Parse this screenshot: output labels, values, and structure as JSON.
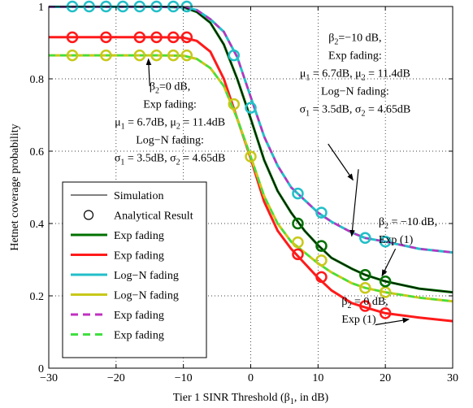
{
  "chart_data": {
    "type": "line",
    "xlabel": "Tier 1 SINR Threshold (β",
    "xlabel_sub": "1",
    "xlabel_tail": ", in dB)",
    "ylabel": "Hetnet coverage probability",
    "xlim": [
      -30,
      30
    ],
    "ylim": [
      0,
      1
    ],
    "xticks": [
      -30,
      -20,
      -10,
      0,
      10,
      20,
      30
    ],
    "yticks": [
      0,
      0.2,
      0.4,
      0.6,
      0.8,
      1
    ],
    "grid": true,
    "legend_position": "lower-left",
    "legend": [
      {
        "label": "Simulation",
        "style": "line",
        "color": "#000000"
      },
      {
        "label": "Analytical Result",
        "style": "marker",
        "color": "#000000"
      },
      {
        "label": "Exp fading",
        "style": "line",
        "color": "#007000"
      },
      {
        "label": "Exp fading",
        "style": "line",
        "color": "#ff1a1a"
      },
      {
        "label": "Log−N fading",
        "style": "line",
        "color": "#22bfc8"
      },
      {
        "label": "Log−N fading",
        "style": "line",
        "color": "#c8c81a"
      },
      {
        "label": "Exp fading",
        "style": "dash",
        "color": "#c030c0"
      },
      {
        "label": "Exp fading",
        "style": "dash",
        "color": "#40e040"
      }
    ],
    "series": [
      {
        "color": "#007000",
        "dash": false,
        "x": [
          -30,
          -20,
          -14,
          -10,
          -8,
          -6,
          -4,
          -2,
          0,
          2,
          4,
          6,
          8,
          10,
          12,
          15,
          17,
          20,
          25,
          30
        ],
        "y": [
          0.999,
          0.999,
          0.999,
          0.998,
          0.985,
          0.955,
          0.895,
          0.8,
          0.69,
          0.575,
          0.49,
          0.43,
          0.38,
          0.34,
          0.305,
          0.275,
          0.258,
          0.24,
          0.22,
          0.21
        ]
      },
      {
        "color": "#22bfc8",
        "dash": false,
        "x": [
          -30,
          -20,
          -14,
          -10,
          -8,
          -6,
          -4,
          -2,
          0,
          2,
          4,
          6,
          8,
          10,
          12,
          15,
          17,
          20,
          25,
          30
        ],
        "y": [
          0.999,
          0.999,
          0.999,
          0.998,
          0.99,
          0.965,
          0.93,
          0.86,
          0.75,
          0.64,
          0.56,
          0.5,
          0.465,
          0.43,
          0.405,
          0.375,
          0.36,
          0.35,
          0.33,
          0.32
        ]
      },
      {
        "color": "#c030c0",
        "dash": true,
        "x": [
          -30,
          -20,
          -14,
          -10,
          -8,
          -6,
          -4,
          -2,
          0,
          2,
          4,
          6,
          8,
          10,
          12,
          15,
          17,
          20,
          25,
          30
        ],
        "y": [
          0.999,
          0.999,
          0.999,
          0.998,
          0.99,
          0.965,
          0.93,
          0.86,
          0.75,
          0.64,
          0.56,
          0.5,
          0.465,
          0.43,
          0.405,
          0.375,
          0.36,
          0.35,
          0.33,
          0.32
        ]
      },
      {
        "color": "#ff1a1a",
        "dash": false,
        "x": [
          -30,
          -20,
          -14,
          -10,
          -8,
          -6,
          -4,
          -2,
          0,
          2,
          4,
          6,
          8,
          10,
          12,
          15,
          17,
          20,
          25,
          30
        ],
        "y": [
          0.915,
          0.915,
          0.915,
          0.914,
          0.905,
          0.875,
          0.8,
          0.69,
          0.58,
          0.46,
          0.38,
          0.33,
          0.29,
          0.25,
          0.215,
          0.18,
          0.168,
          0.152,
          0.14,
          0.13
        ]
      },
      {
        "color": "#c8c81a",
        "dash": false,
        "x": [
          -30,
          -20,
          -14,
          -10,
          -8,
          -6,
          -4,
          -2,
          0,
          2,
          4,
          6,
          8,
          10,
          12,
          15,
          17,
          20,
          25,
          30
        ],
        "y": [
          0.865,
          0.865,
          0.865,
          0.864,
          0.855,
          0.83,
          0.78,
          0.69,
          0.585,
          0.475,
          0.4,
          0.35,
          0.32,
          0.29,
          0.265,
          0.235,
          0.222,
          0.21,
          0.195,
          0.185
        ]
      },
      {
        "color": "#40e040",
        "dash": true,
        "x": [
          -30,
          -20,
          -14,
          -10,
          -8,
          -6,
          -4,
          -2,
          0,
          2,
          4,
          6,
          8,
          10,
          12,
          15,
          17,
          20,
          25,
          30
        ],
        "y": [
          0.865,
          0.865,
          0.865,
          0.864,
          0.855,
          0.83,
          0.78,
          0.69,
          0.585,
          0.475,
          0.4,
          0.35,
          0.32,
          0.29,
          0.265,
          0.235,
          0.222,
          0.21,
          0.195,
          0.185
        ]
      },
      {
        "color": "#000000",
        "dash": false,
        "x": [
          -30,
          -20,
          -14,
          -10,
          -8,
          -6,
          -4,
          -2,
          0,
          2,
          4,
          6,
          8,
          10,
          12,
          15,
          17,
          20,
          25,
          30
        ],
        "y": [
          0.999,
          0.999,
          0.999,
          0.998,
          0.985,
          0.955,
          0.895,
          0.8,
          0.69,
          0.575,
          0.49,
          0.43,
          0.38,
          0.34,
          0.305,
          0.275,
          0.258,
          0.24,
          0.22,
          0.21
        ]
      }
    ],
    "markers": [
      {
        "color": "#22bfc8",
        "x": [
          -26.5,
          -24,
          -21.5,
          -19,
          -16.5,
          -14,
          -11.5,
          -9.5,
          -2.5,
          0,
          7,
          10.5,
          17,
          20
        ],
        "y": [
          1.0,
          1.0,
          1.0,
          1.0,
          1.0,
          1.0,
          1.0,
          1.0,
          0.865,
          0.72,
          0.483,
          0.43,
          0.36,
          0.35
        ]
      },
      {
        "color": "#ff1a1a",
        "x": [
          -26.5,
          -21.5,
          -16.5,
          -14,
          -11.5,
          -9.5,
          7,
          10.5,
          17,
          20
        ],
        "y": [
          0.915,
          0.915,
          0.915,
          0.915,
          0.915,
          0.915,
          0.315,
          0.252,
          0.172,
          0.152
        ]
      },
      {
        "color": "#c8c81a",
        "x": [
          -26.5,
          -21.5,
          -16.5,
          -14,
          -11.5,
          -9.5,
          -2.5,
          0,
          7,
          10.5,
          17,
          20
        ],
        "y": [
          0.865,
          0.865,
          0.865,
          0.865,
          0.865,
          0.865,
          0.73,
          0.585,
          0.348,
          0.298,
          0.222,
          0.21
        ]
      },
      {
        "color": "#007000",
        "x": [
          7,
          10.5,
          17,
          20
        ],
        "y": [
          0.4,
          0.338,
          0.258,
          0.24
        ]
      }
    ],
    "annotations": [
      {
        "name": "annotation-left",
        "anchor": "middle",
        "x": -12,
        "y": 0.77,
        "lines": [
          "β2=0 dB,",
          "Exp fading:",
          "μ1 = 6.7dB, μ2 = 11.4dB",
          "Log−N fading:",
          "σ1 = 3.5dB, σ2 = 4.65dB"
        ]
      },
      {
        "name": "annotation-right-top",
        "anchor": "middle",
        "x": 15.5,
        "y": 0.905,
        "lines": [
          "β2=−10 dB,",
          "Exp fading:",
          "μ1 = 6.7dB, μ2 = 11.4dB",
          "Log−N fading:",
          "σ1 = 3.5dB, σ2 = 4.65dB"
        ]
      },
      {
        "name": "annotation-right-mid",
        "anchor": "start",
        "x": 19,
        "y": 0.395,
        "lines": [
          "β2 = −10 dB,",
          "Exp (1)"
        ]
      },
      {
        "name": "annotation-right-low",
        "anchor": "start",
        "x": 13.5,
        "y": 0.175,
        "lines": [
          "β2 = 0 dB,",
          "Exp (1)"
        ]
      }
    ],
    "arrows": [
      {
        "from": [
          -15,
          0.78
        ],
        "to": [
          -15.2,
          0.855
        ]
      },
      {
        "from": [
          16,
          0.55
        ],
        "to": [
          15,
          0.365
        ]
      },
      {
        "from": [
          11.5,
          0.62
        ],
        "to": [
          15.2,
          0.52
        ]
      },
      {
        "from": [
          21.5,
          0.33
        ],
        "to": [
          19.5,
          0.255
        ]
      },
      {
        "from": [
          18.5,
          0.12
        ],
        "to": [
          23.5,
          0.135
        ]
      }
    ]
  }
}
